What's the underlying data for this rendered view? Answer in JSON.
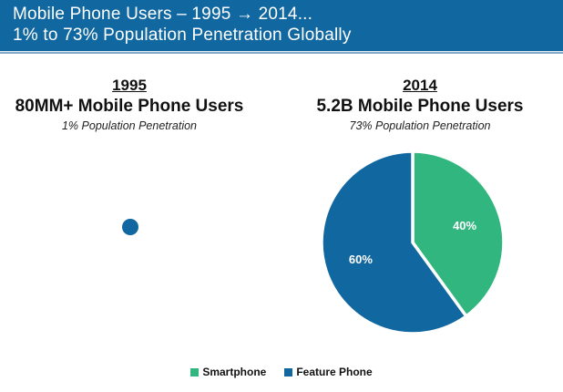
{
  "slide": {
    "background_color": "#FFFFFF"
  },
  "header": {
    "title_line1": "Mobile Phone Users – 1995 → 2014...",
    "title_line2": "1% to 73% Population Penetration Globally",
    "background_color": "#1167A0",
    "accent_line_color": "#85ABC9",
    "text_color": "#FFFFFF"
  },
  "panel_1995": {
    "year": "1995",
    "heading": "80MM+ Mobile Phone Users",
    "subheading": "1% Population Penetration",
    "dot_color": "#1167A0"
  },
  "panel_2014": {
    "year": "2014",
    "heading": "5.2B Mobile Phone Users",
    "subheading": "73% Population Penetration"
  },
  "legend": {
    "items": [
      {
        "label": "Smartphone",
        "color": "#30B67E"
      },
      {
        "label": "Feature Phone",
        "color": "#1167A0"
      }
    ]
  },
  "chart_data": {
    "type": "pie",
    "title": "5.2B Mobile Phone Users",
    "subtitle": "73% Population Penetration",
    "labels": [
      "Smartphone",
      "Feature Phone"
    ],
    "values": [
      40,
      60
    ],
    "value_labels": [
      "40%",
      "60%"
    ],
    "colors": [
      "#30B67E",
      "#1167A0"
    ],
    "start_angle_deg": 0,
    "direction": "clockwise",
    "slice_border_color": "#FFFFFF",
    "legend_position": "bottom"
  }
}
